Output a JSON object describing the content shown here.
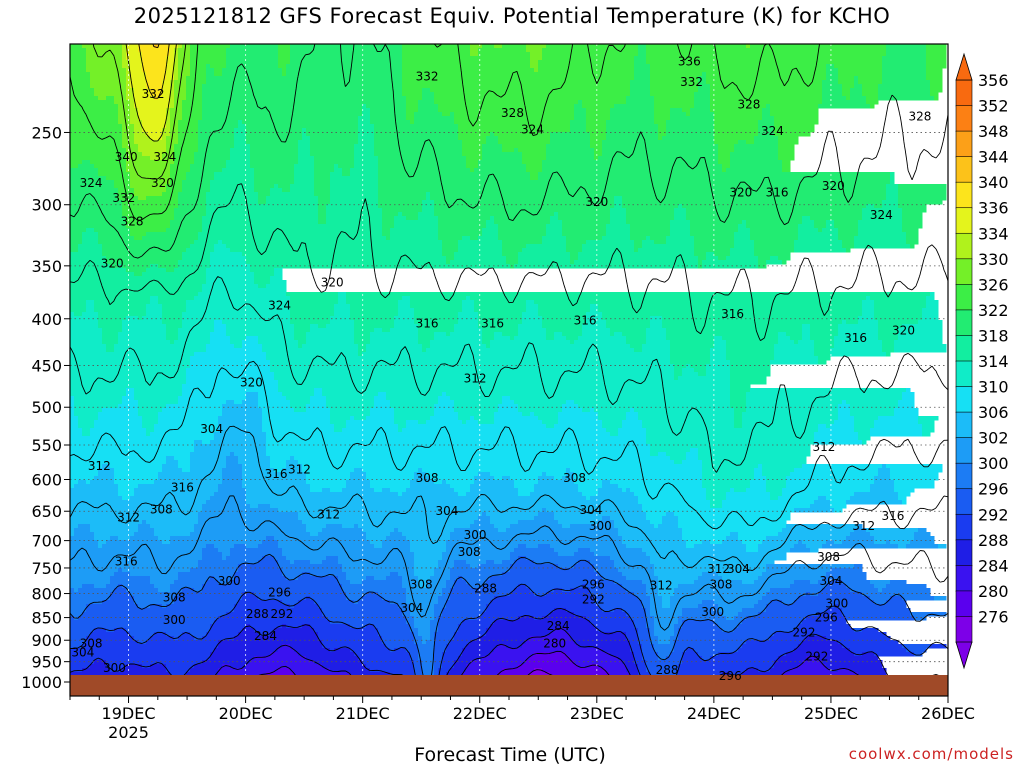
{
  "chart_data": {
    "type": "contour",
    "title": "2025121812 GFS Forecast Equiv. Potential Temperature (K) for KCHO",
    "xlabel": "Forecast Time (UTC)",
    "ylabel": "",
    "x_categories": [
      "19DEC",
      "20DEC",
      "21DEC",
      "22DEC",
      "23DEC",
      "24DEC",
      "25DEC",
      "26DEC"
    ],
    "x_year": "2025",
    "x_range_days": [
      18.5,
      26.0
    ],
    "y_ticks": [
      250,
      300,
      350,
      400,
      450,
      500,
      550,
      600,
      650,
      700,
      750,
      800,
      850,
      900,
      950,
      1000
    ],
    "y_range_hpa": [
      1000,
      200
    ],
    "y_scale": "log",
    "grid": true,
    "colorbar": {
      "levels": [
        276,
        280,
        284,
        288,
        292,
        296,
        300,
        302,
        306,
        310,
        314,
        318,
        322,
        326,
        330,
        334,
        336,
        340,
        344,
        348,
        352,
        356
      ],
      "colors": [
        "#7d00e8",
        "#5a00ee",
        "#3a12f0",
        "#1f1ee6",
        "#1a3cf0",
        "#1a5cf2",
        "#1c7cf4",
        "#1d9cf6",
        "#1cbcf8",
        "#16e0f4",
        "#10ecc8",
        "#12eea0",
        "#22ec72",
        "#3cee46",
        "#74f028",
        "#b0f21c",
        "#e4f41c",
        "#fce41c",
        "#fcc21a",
        "#fca018",
        "#fc8014",
        "#f86a10"
      ],
      "extend": "both"
    },
    "contour_labels": [
      {
        "day": 19.21,
        "p": 227,
        "value": "332"
      },
      {
        "day": 18.98,
        "p": 266,
        "value": "340"
      },
      {
        "day": 19.31,
        "p": 266,
        "value": "324"
      },
      {
        "day": 18.68,
        "p": 284,
        "value": "324"
      },
      {
        "day": 19.29,
        "p": 284,
        "value": "320"
      },
      {
        "day": 18.96,
        "p": 295,
        "value": "332"
      },
      {
        "day": 19.03,
        "p": 313,
        "value": "328"
      },
      {
        "day": 18.86,
        "p": 348,
        "value": "320"
      },
      {
        "day": 20.29,
        "p": 387,
        "value": "324"
      },
      {
        "day": 20.74,
        "p": 365,
        "value": "320"
      },
      {
        "day": 21.55,
        "p": 405,
        "value": "316"
      },
      {
        "day": 22.11,
        "p": 405,
        "value": "316"
      },
      {
        "day": 22.9,
        "p": 402,
        "value": "316"
      },
      {
        "day": 20.05,
        "p": 470,
        "value": "320"
      },
      {
        "day": 21.96,
        "p": 465,
        "value": "312"
      },
      {
        "day": 19.71,
        "p": 528,
        "value": "304"
      },
      {
        "day": 18.75,
        "p": 580,
        "value": "312"
      },
      {
        "day": 19.46,
        "p": 612,
        "value": "316"
      },
      {
        "day": 20.26,
        "p": 592,
        "value": "316"
      },
      {
        "day": 20.46,
        "p": 585,
        "value": "312"
      },
      {
        "day": 21.55,
        "p": 598,
        "value": "308"
      },
      {
        "day": 19.0,
        "p": 660,
        "value": "312"
      },
      {
        "day": 19.28,
        "p": 647,
        "value": "308"
      },
      {
        "day": 20.71,
        "p": 655,
        "value": "312"
      },
      {
        "day": 21.72,
        "p": 650,
        "value": "304"
      },
      {
        "day": 21.96,
        "p": 690,
        "value": "300"
      },
      {
        "day": 23.03,
        "p": 675,
        "value": "300"
      },
      {
        "day": 21.91,
        "p": 720,
        "value": "308"
      },
      {
        "day": 18.98,
        "p": 738,
        "value": "316"
      },
      {
        "day": 19.86,
        "p": 775,
        "value": "300"
      },
      {
        "day": 20.29,
        "p": 798,
        "value": "296"
      },
      {
        "day": 21.5,
        "p": 782,
        "value": "308"
      },
      {
        "day": 22.05,
        "p": 790,
        "value": "288"
      },
      {
        "day": 22.97,
        "p": 782,
        "value": "296"
      },
      {
        "day": 23.55,
        "p": 784,
        "value": "312"
      },
      {
        "day": 24.04,
        "p": 752,
        "value": "312"
      },
      {
        "day": 24.21,
        "p": 752,
        "value": "304"
      },
      {
        "day": 24.06,
        "p": 782,
        "value": "308"
      },
      {
        "day": 25.0,
        "p": 775,
        "value": "304"
      },
      {
        "day": 25.05,
        "p": 820,
        "value": "300"
      },
      {
        "day": 19.39,
        "p": 808,
        "value": "308"
      },
      {
        "day": 20.1,
        "p": 842,
        "value": "288"
      },
      {
        "day": 20.31,
        "p": 842,
        "value": "292"
      },
      {
        "day": 21.42,
        "p": 830,
        "value": "304"
      },
      {
        "day": 22.97,
        "p": 812,
        "value": "292"
      },
      {
        "day": 23.99,
        "p": 838,
        "value": "300"
      },
      {
        "day": 24.96,
        "p": 850,
        "value": "296"
      },
      {
        "day": 19.39,
        "p": 855,
        "value": "300"
      },
      {
        "day": 22.67,
        "p": 868,
        "value": "284"
      },
      {
        "day": 20.17,
        "p": 890,
        "value": "284"
      },
      {
        "day": 24.77,
        "p": 883,
        "value": "292"
      },
      {
        "day": 18.68,
        "p": 908,
        "value": "308"
      },
      {
        "day": 22.64,
        "p": 908,
        "value": "280"
      },
      {
        "day": 18.61,
        "p": 928,
        "value": "304"
      },
      {
        "day": 24.88,
        "p": 938,
        "value": "292"
      },
      {
        "day": 18.88,
        "p": 965,
        "value": "300"
      },
      {
        "day": 23.6,
        "p": 970,
        "value": "288"
      },
      {
        "day": 24.14,
        "p": 985,
        "value": "296"
      },
      {
        "day": 21.55,
        "p": 217,
        "value": "332"
      },
      {
        "day": 22.45,
        "p": 248,
        "value": "324"
      },
      {
        "day": 22.28,
        "p": 238,
        "value": "328"
      },
      {
        "day": 23.79,
        "p": 209,
        "value": "336"
      },
      {
        "day": 23.81,
        "p": 220,
        "value": "332"
      },
      {
        "day": 24.3,
        "p": 233,
        "value": "328"
      },
      {
        "day": 24.5,
        "p": 249,
        "value": "324"
      },
      {
        "day": 23.0,
        "p": 298,
        "value": "320"
      },
      {
        "day": 24.23,
        "p": 291,
        "value": "320"
      },
      {
        "day": 24.54,
        "p": 291,
        "value": "316"
      },
      {
        "day": 25.02,
        "p": 286,
        "value": "320"
      },
      {
        "day": 25.76,
        "p": 240,
        "value": "328"
      },
      {
        "day": 25.43,
        "p": 308,
        "value": "324"
      },
      {
        "day": 24.16,
        "p": 395,
        "value": "316"
      },
      {
        "day": 25.21,
        "p": 420,
        "value": "316"
      },
      {
        "day": 25.62,
        "p": 412,
        "value": "320"
      },
      {
        "day": 24.94,
        "p": 553,
        "value": "312"
      },
      {
        "day": 25.28,
        "p": 675,
        "value": "312"
      },
      {
        "day": 25.53,
        "p": 658,
        "value": "316"
      },
      {
        "day": 24.98,
        "p": 730,
        "value": "308"
      },
      {
        "day": 22.81,
        "p": 598,
        "value": "308"
      },
      {
        "day": 22.95,
        "p": 648,
        "value": "304"
      }
    ]
  },
  "credit": "coolwx.com/models",
  "colors": {
    "ground": "#a04a28",
    "contour": "#000000",
    "grid": "#555555"
  }
}
